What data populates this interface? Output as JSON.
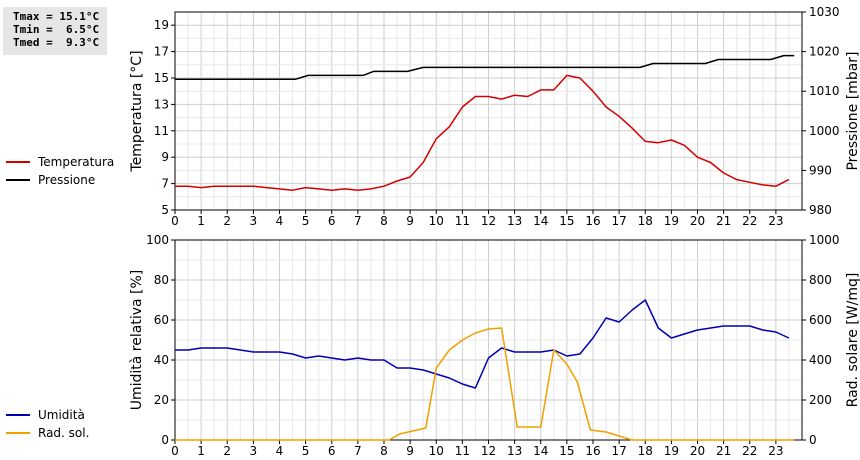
{
  "stats": {
    "tmax": "Tmax = 15.1°C",
    "tmin": "Tmin =  6.5°C",
    "tmed": "Tmed =  9.3°C"
  },
  "legend_top": [
    {
      "label": "Temperatura",
      "color": "#d40000"
    },
    {
      "label": "Pressione",
      "color": "#000000"
    }
  ],
  "legend_bottom": [
    {
      "label": "Umidità",
      "color": "#0000b4"
    },
    {
      "label": "Rad. sol.",
      "color": "#f0a000"
    }
  ],
  "chart_data": [
    {
      "type": "line",
      "xlim": [
        0,
        24
      ],
      "x_ticks": [
        "0",
        "1",
        "2",
        "3",
        "4",
        "5",
        "6",
        "7",
        "8",
        "9",
        "10",
        "11",
        "12",
        "13",
        "14",
        "15",
        "16",
        "17",
        "18",
        "19",
        "20",
        "21",
        "22",
        "23"
      ],
      "ylabel_left": "Temperatura [°C]",
      "ylim_left": [
        5,
        20
      ],
      "yticks_left": [
        "5",
        "7",
        "9",
        "11",
        "13",
        "15",
        "17",
        "19"
      ],
      "ylabel_right": "Pressione [mbar]",
      "ylim_right": [
        980,
        1030
      ],
      "yticks_right": [
        "980",
        "990",
        "1000",
        "1010",
        "1020",
        "1030"
      ],
      "grid": true,
      "series": [
        {
          "name": "Temperatura",
          "axis": "left",
          "color": "#d40000",
          "x": [
            0,
            0.5,
            1,
            1.5,
            2,
            2.5,
            3,
            3.5,
            4,
            4.5,
            5,
            5.5,
            6,
            6.5,
            7,
            7.5,
            8,
            8.5,
            9,
            9.5,
            10,
            10.5,
            11,
            11.5,
            12,
            12.5,
            13,
            13.5,
            14,
            14.5,
            15,
            15.5,
            16,
            16.5,
            17,
            17.5,
            18,
            18.5,
            19,
            19.5,
            20,
            20.5,
            21,
            21.5,
            22,
            22.5,
            23,
            23.5
          ],
          "values": [
            6.8,
            6.8,
            6.7,
            6.8,
            6.8,
            6.8,
            6.8,
            6.7,
            6.6,
            6.5,
            6.7,
            6.6,
            6.5,
            6.6,
            6.5,
            6.6,
            6.8,
            7.2,
            7.5,
            8.6,
            10.4,
            11.3,
            12.8,
            13.6,
            13.6,
            13.4,
            13.7,
            13.6,
            14.1,
            14.1,
            15.2,
            15.0,
            14.0,
            12.8,
            12.1,
            11.2,
            10.2,
            10.1,
            10.3,
            9.9,
            9.0,
            8.6,
            7.8,
            7.3,
            7.1,
            6.9,
            6.8,
            7.3
          ]
        },
        {
          "name": "Pressione",
          "axis": "right",
          "color": "#000000",
          "x": [
            0,
            4.6,
            5.1,
            7.2,
            7.6,
            8.9,
            9.5,
            17.8,
            18.3,
            20.3,
            20.8,
            22.8,
            23.3,
            23.7
          ],
          "values": [
            1013,
            1013,
            1014,
            1014,
            1015,
            1015,
            1016,
            1016,
            1017,
            1017,
            1018,
            1018,
            1019,
            1019
          ]
        }
      ]
    },
    {
      "type": "line",
      "xlim": [
        0,
        24
      ],
      "x_ticks": [
        "0",
        "1",
        "2",
        "3",
        "4",
        "5",
        "6",
        "7",
        "8",
        "9",
        "10",
        "11",
        "12",
        "13",
        "14",
        "15",
        "16",
        "17",
        "18",
        "19",
        "20",
        "21",
        "22",
        "23"
      ],
      "ylabel_left": "Umidità relativa [%]",
      "ylim_left": [
        0,
        100
      ],
      "yticks_left": [
        "0",
        "20",
        "40",
        "60",
        "80",
        "100"
      ],
      "ylabel_right": "Rad. solare [W/mq]",
      "ylim_right": [
        0,
        1000
      ],
      "yticks_right": [
        "0",
        "200",
        "400",
        "600",
        "800",
        "1000"
      ],
      "grid": true,
      "series": [
        {
          "name": "Umidità",
          "axis": "left",
          "color": "#0000b4",
          "x": [
            0,
            0.5,
            1,
            1.5,
            2,
            2.5,
            3,
            3.5,
            4,
            4.5,
            5,
            5.5,
            6,
            6.5,
            7,
            7.5,
            8,
            8.5,
            9,
            9.5,
            10,
            10.5,
            11,
            11.5,
            12,
            12.5,
            13,
            13.5,
            14,
            14.5,
            15,
            15.5,
            16,
            16.5,
            17,
            17.5,
            18,
            18.5,
            19,
            19.5,
            20,
            20.5,
            21,
            21.5,
            22,
            22.5,
            23,
            23.5
          ],
          "values": [
            45,
            45,
            46,
            46,
            46,
            45,
            44,
            44,
            44,
            43,
            41,
            42,
            41,
            40,
            41,
            40,
            40,
            36,
            36,
            35,
            33,
            31,
            28,
            26,
            41,
            46,
            44,
            44,
            44,
            45,
            42,
            43,
            51,
            61,
            59,
            65,
            70,
            56,
            51,
            53,
            55,
            56,
            57,
            57,
            57,
            55,
            54,
            51
          ]
        },
        {
          "name": "Rad. sol.",
          "axis": "right",
          "color": "#f0a000",
          "x": [
            0,
            8.2,
            8.6,
            9.1,
            9.6,
            10.0,
            10.5,
            11.0,
            11.5,
            12.0,
            12.5,
            12.9,
            13.1,
            14.0,
            14.5,
            15.0,
            15.4,
            15.9,
            16.5,
            17.0,
            17.5,
            18.0,
            23.7
          ],
          "values": [
            0,
            0,
            30,
            45,
            60,
            360,
            450,
            500,
            535,
            555,
            560,
            230,
            65,
            65,
            450,
            380,
            290,
            50,
            40,
            20,
            0,
            0,
            0
          ]
        }
      ]
    }
  ]
}
